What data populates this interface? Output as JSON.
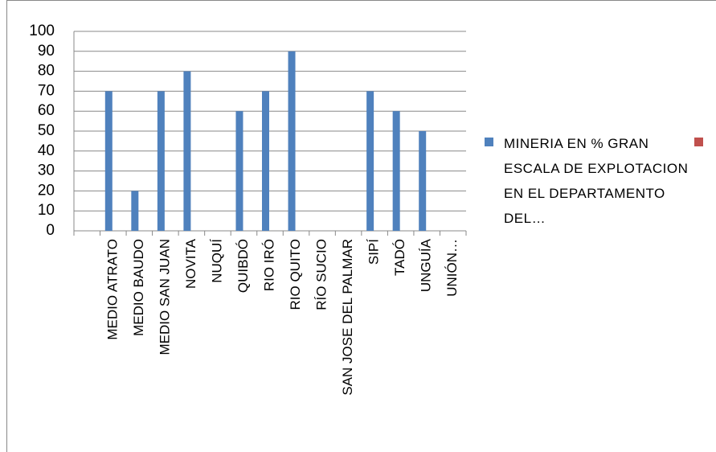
{
  "chart_data": {
    "type": "bar",
    "categories": [
      null,
      "MEDIO ATRATO",
      "MEDIO BAUDO",
      "MEDIO SAN JUAN",
      "NOVITA",
      "NUQUÍ",
      "QUIBDÓ",
      "RIO IRÓ",
      "RIO QUITO",
      "RÍO SUCIO",
      "SAN JOSE DEL PALMAR",
      "SIPÍ",
      "TADÓ",
      "UNGUÍA",
      "UNIÓN…"
    ],
    "series": [
      {
        "name": "MINERIA EN % GRAN ESCALA DE EXPLOTACION EN EL DEPARTAMENTO DEL…",
        "color": "#4f81bd",
        "values": [
          null,
          70,
          20,
          70,
          80,
          null,
          60,
          70,
          90,
          null,
          null,
          70,
          60,
          50,
          null
        ]
      },
      {
        "color": "#c0504d",
        "values": [
          null,
          null,
          null,
          null,
          null,
          null,
          null,
          null,
          null,
          null,
          null,
          null,
          null,
          null,
          null
        ]
      }
    ],
    "ylim": [
      0,
      100
    ],
    "yticks": [
      0,
      10,
      20,
      30,
      40,
      50,
      60,
      70,
      80,
      90,
      100
    ],
    "grid": true
  }
}
